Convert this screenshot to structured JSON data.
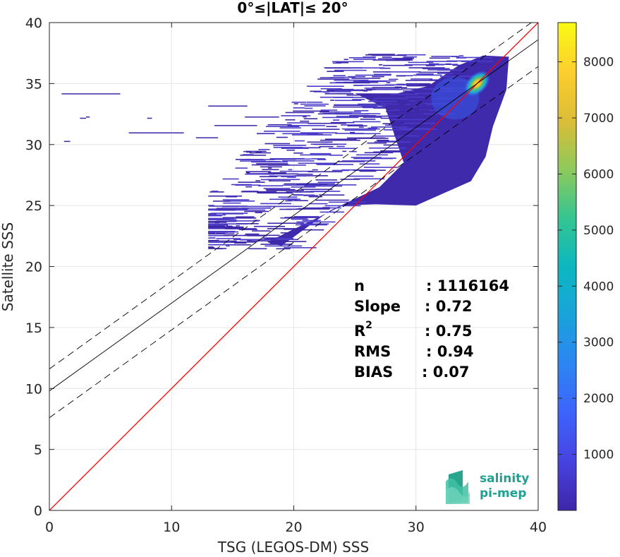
{
  "chart_data": {
    "type": "heatmap",
    "title": "0°≤|LAT|≤ 20°",
    "xlabel": "TSG (LEGOS-DM) SSS",
    "ylabel": "Satellite SSS",
    "xlim": [
      0,
      40
    ],
    "ylim": [
      0,
      40
    ],
    "xticks": [
      "0",
      "10",
      "20",
      "30",
      "40"
    ],
    "yticks": [
      "0",
      "5",
      "10",
      "15",
      "20",
      "25",
      "30",
      "35",
      "40"
    ],
    "grid": true,
    "density_peak": {
      "x": 35.0,
      "y": 35.0
    },
    "lines": [
      {
        "name": "one-to-one",
        "style": "solid",
        "color": "#ff0000",
        "slope": 1.0,
        "intercept": 0.0
      },
      {
        "name": "regression",
        "style": "solid",
        "color": "#000000",
        "slope": 0.72,
        "intercept": 9.8
      },
      {
        "name": "regression upper bound",
        "style": "dashed",
        "color": "#000000",
        "slope": 0.72,
        "intercept": 11.6
      },
      {
        "name": "regression lower bound",
        "style": "dashed",
        "color": "#000000",
        "slope": 0.72,
        "intercept": 7.6
      }
    ],
    "colorbar": {
      "range": [
        0,
        8700
      ],
      "ticks": [
        "1000",
        "2000",
        "3000",
        "4000",
        "5000",
        "6000",
        "7000",
        "8000"
      ],
      "colormap": "parula"
    },
    "stats": [
      {
        "label": "n",
        "value": ": 1116164"
      },
      {
        "label": "Slope",
        "value": ": 0.72"
      },
      {
        "label": "R",
        "sup": "2",
        "value": ": 0.75"
      },
      {
        "label": "RMS",
        "value": ": 0.94"
      },
      {
        "label": "BIAS",
        "value": ": 0.07"
      }
    ]
  },
  "logo": {
    "line1": "salinity",
    "line2": "pi-mep"
  },
  "colors": {
    "one_to_one": "#ff0000",
    "density_low": "#3e26a8",
    "density_high": "#f9fb15"
  }
}
